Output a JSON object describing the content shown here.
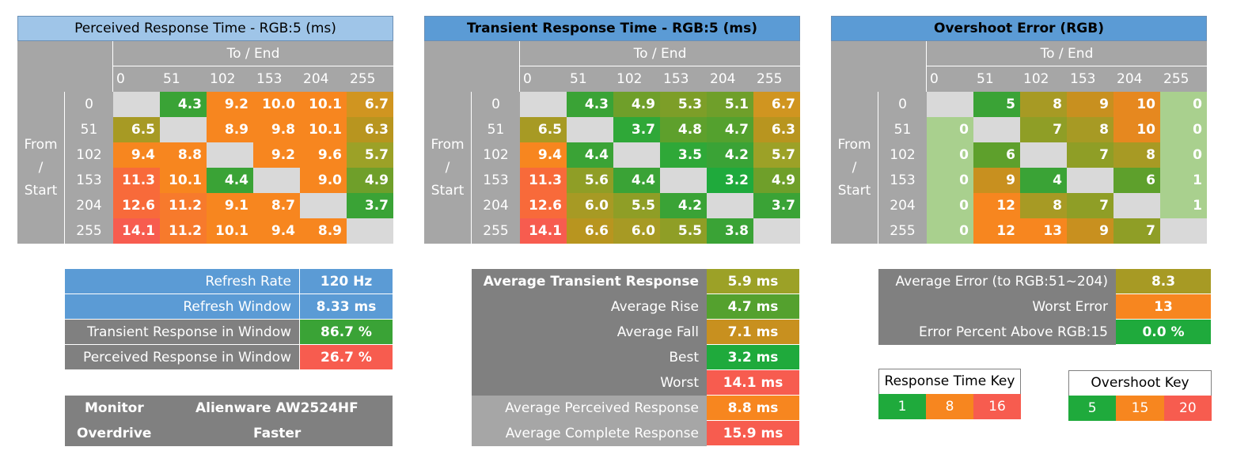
{
  "colors": {
    "title_light": "#9fc5e8",
    "title_blue": "#5b9bd5",
    "grey": "#a6a6a6",
    "dark_grey": "#808080",
    "empty": "#d9d9d9",
    "green": "#3aa336",
    "olive": "#9ca127",
    "olive2": "#b8951f",
    "orange": "#f7861f",
    "red": "#f75c4f",
    "pale_green": "#a9d08e"
  },
  "tables": [
    {
      "title": "Perceived Response Time - RGB:5 (ms)",
      "to_end": "To / End",
      "from": "From",
      "slash": "/",
      "start": "Start",
      "cols": [
        "0",
        "51",
        "102",
        "153",
        "204",
        "255"
      ],
      "rows": [
        "0",
        "51",
        "102",
        "153",
        "204",
        "255"
      ],
      "values": [
        [
          "",
          "4.3",
          "9.2",
          "10.0",
          "10.1",
          "6.7"
        ],
        [
          "6.5",
          "",
          "8.9",
          "9.8",
          "10.1",
          "6.3"
        ],
        [
          "9.4",
          "8.8",
          "",
          "9.2",
          "9.6",
          "5.7"
        ],
        [
          "11.3",
          "10.1",
          "4.4",
          "",
          "9.0",
          "4.9"
        ],
        [
          "12.6",
          "11.2",
          "9.1",
          "8.7",
          "",
          "3.7"
        ],
        [
          "14.1",
          "11.2",
          "10.1",
          "9.4",
          "8.9",
          ""
        ]
      ],
      "colors": [
        [
          "",
          "#3aa336",
          "#f7861f",
          "#f7861f",
          "#f7861f",
          "#d09520"
        ],
        [
          "#a79a24",
          "",
          "#f7861f",
          "#f7861f",
          "#f7861f",
          "#b8951f"
        ],
        [
          "#f7861f",
          "#f7861f",
          "",
          "#f7861f",
          "#f7861f",
          "#9ca127"
        ],
        [
          "#f86a3a",
          "#f7861f",
          "#3aa336",
          "",
          "#f7861f",
          "#6f9f2a"
        ],
        [
          "#f86a3a",
          "#f77a2c",
          "#f7861f",
          "#f7861f",
          "",
          "#3aa336"
        ],
        [
          "#f75c4f",
          "#f77a2c",
          "#f7861f",
          "#f7861f",
          "#f7861f",
          ""
        ]
      ]
    },
    {
      "title": "Transient Response Time - RGB:5 (ms)",
      "to_end": "To / End",
      "from": "From",
      "slash": "/",
      "start": "Start",
      "cols": [
        "0",
        "51",
        "102",
        "153",
        "204",
        "255"
      ],
      "rows": [
        "0",
        "51",
        "102",
        "153",
        "204",
        "255"
      ],
      "values": [
        [
          "",
          "4.3",
          "4.9",
          "5.3",
          "5.1",
          "6.7"
        ],
        [
          "6.5",
          "",
          "3.7",
          "4.8",
          "4.7",
          "6.3"
        ],
        [
          "9.4",
          "4.4",
          "",
          "3.5",
          "4.2",
          "5.7"
        ],
        [
          "11.3",
          "5.6",
          "4.4",
          "",
          "3.2",
          "4.9"
        ],
        [
          "12.6",
          "6.0",
          "5.5",
          "4.2",
          "",
          "3.7"
        ],
        [
          "14.1",
          "6.6",
          "6.0",
          "5.5",
          "3.8",
          ""
        ]
      ],
      "colors": [
        [
          "",
          "#3aa336",
          "#6f9f2a",
          "#7d9e28",
          "#6f9f2a",
          "#d09520"
        ],
        [
          "#a79a24",
          "",
          "#2fa838",
          "#5ea02c",
          "#54a12e",
          "#b8951f"
        ],
        [
          "#f7861f",
          "#3aa336",
          "",
          "#2fa838",
          "#3aa336",
          "#9ca127"
        ],
        [
          "#f86a3a",
          "#8f9e26",
          "#3aa336",
          "",
          "#1faa3c",
          "#6f9f2a"
        ],
        [
          "#f86a3a",
          "#a79a24",
          "#8f9e26",
          "#3aa336",
          "",
          "#3aa336"
        ],
        [
          "#f75c4f",
          "#b8951f",
          "#a79a24",
          "#8f9e26",
          "#3aa336",
          ""
        ]
      ]
    },
    {
      "title": "Overshoot Error (RGB)",
      "to_end": "To / End",
      "from": "From",
      "slash": "/",
      "start": "Start",
      "cols": [
        "0",
        "51",
        "102",
        "153",
        "204",
        "255"
      ],
      "rows": [
        "0",
        "51",
        "102",
        "153",
        "204",
        "255"
      ],
      "values": [
        [
          "",
          "5",
          "8",
          "9",
          "10",
          "0"
        ],
        [
          "0",
          "",
          "7",
          "8",
          "10",
          "0"
        ],
        [
          "0",
          "6",
          "",
          "7",
          "8",
          "0"
        ],
        [
          "0",
          "9",
          "4",
          "",
          "6",
          "1"
        ],
        [
          "0",
          "12",
          "8",
          "7",
          "",
          "1"
        ],
        [
          "0",
          "12",
          "13",
          "9",
          "7",
          ""
        ]
      ],
      "colors": [
        [
          "",
          "#3aa336",
          "#a79a24",
          "#c8901f",
          "#e6881f",
          "#a9d08e"
        ],
        [
          "#a9d08e",
          "",
          "#8f9e26",
          "#a79a24",
          "#e6881f",
          "#a9d08e"
        ],
        [
          "#a9d08e",
          "#5ea02c",
          "",
          "#8f9e26",
          "#a79a24",
          "#a9d08e"
        ],
        [
          "#a9d08e",
          "#c8901f",
          "#3aa336",
          "",
          "#5ea02c",
          "#a9d08e"
        ],
        [
          "#a9d08e",
          "#f7861f",
          "#a79a24",
          "#8f9e26",
          "",
          "#a9d08e"
        ],
        [
          "#a9d08e",
          "#f7861f",
          "#f7861f",
          "#c8901f",
          "#8f9e26",
          ""
        ]
      ]
    }
  ],
  "refresh_table": {
    "rows": [
      {
        "label": "Refresh Rate",
        "value": "120 Hz",
        "label_color": "#5b9bd5",
        "value_color": "#5b9bd5"
      },
      {
        "label": "Refresh Window",
        "value": "8.33 ms",
        "label_color": "#5b9bd5",
        "value_color": "#5b9bd5"
      },
      {
        "label": "Transient Response in Window",
        "value": "86.7 %",
        "label_color": "#808080",
        "value_color": "#3aa336"
      },
      {
        "label": "Perceived Response in Window",
        "value": "26.7 %",
        "label_color": "#808080",
        "value_color": "#f75c4f"
      }
    ]
  },
  "monitor_info": {
    "monitor_label": "Monitor",
    "monitor_value": "Alienware AW2524HF",
    "overdrive_label": "Overdrive",
    "overdrive_value": "Faster"
  },
  "transient_summary": {
    "rows": [
      {
        "label": "Average Transient Response",
        "value": "5.9 ms",
        "bold": true,
        "label_color": "#808080",
        "value_color": "#9ca127"
      },
      {
        "label": "Average Rise",
        "value": "4.7 ms",
        "bold": false,
        "label_color": "#808080",
        "value_color": "#54a12e"
      },
      {
        "label": "Average Fall",
        "value": "7.1 ms",
        "bold": false,
        "label_color": "#808080",
        "value_color": "#c8901f"
      },
      {
        "label": "Best",
        "value": "3.2 ms",
        "bold": false,
        "label_color": "#808080",
        "value_color": "#1faa3c"
      },
      {
        "label": "Worst",
        "value": "14.1 ms",
        "bold": false,
        "label_color": "#808080",
        "value_color": "#f75c4f"
      },
      {
        "label": "Average Perceived Response",
        "value": "8.8 ms",
        "bold": false,
        "label_color": "#a6a6a6",
        "value_color": "#f7861f"
      },
      {
        "label": "Average Complete Response",
        "value": "15.9 ms",
        "bold": false,
        "label_color": "#a6a6a6",
        "value_color": "#f75c4f"
      }
    ]
  },
  "error_summary": {
    "rows": [
      {
        "label": "Average Error (to RGB:51~204)",
        "value": "8.3",
        "label_color": "#808080",
        "value_color": "#a79a24"
      },
      {
        "label": "Worst Error",
        "value": "13",
        "label_color": "#808080",
        "value_color": "#f7861f"
      },
      {
        "label": "Error Percent Above RGB:15",
        "value": "0.0 %",
        "label_color": "#808080",
        "value_color": "#1faa3c"
      }
    ]
  },
  "response_key": {
    "title": "Response Time Key",
    "items": [
      {
        "label": "1",
        "color": "#1faa3c"
      },
      {
        "label": "8",
        "color": "#f7861f"
      },
      {
        "label": "16",
        "color": "#f75c4f"
      }
    ]
  },
  "overshoot_key": {
    "title": "Overshoot Key",
    "items": [
      {
        "label": "5",
        "color": "#1faa3c"
      },
      {
        "label": "15",
        "color": "#f7861f"
      },
      {
        "label": "20",
        "color": "#f75c4f"
      }
    ]
  }
}
